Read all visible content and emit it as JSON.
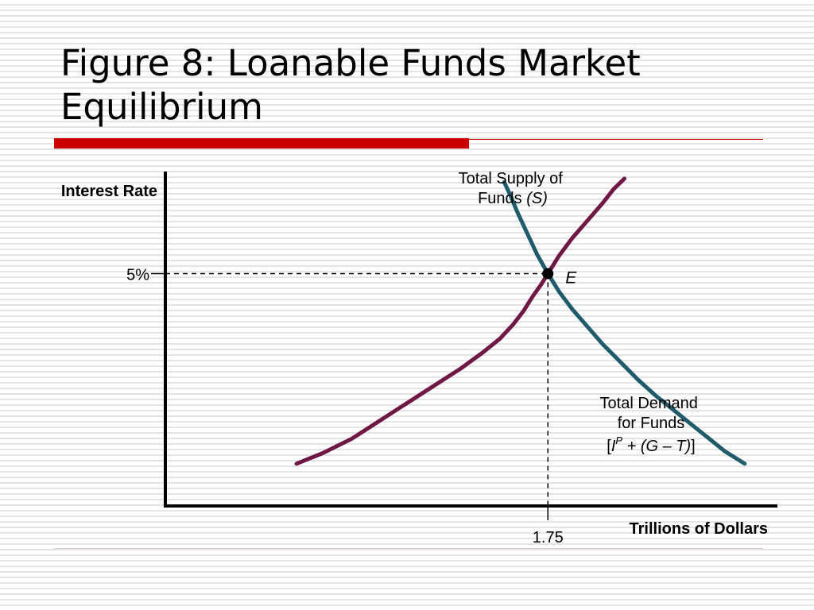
{
  "slide": {
    "title_line1": "Figure 8:  Loanable Funds Market",
    "title_line2": "Equilibrium",
    "accent_color": "#cc0000",
    "line_color": "#cc0000"
  },
  "chart_data": {
    "type": "line",
    "title": "Figure 8:  Loanable Funds Market Equilibrium",
    "ylabel": "Interest Rate",
    "xlabel": "Trillions of Dollars",
    "xlim": [
      0,
      2.8
    ],
    "ylim": [
      0,
      9.5
    ],
    "grid": false,
    "series": [
      {
        "key": "supply",
        "label_line1": "Total Supply of",
        "label_line2_text": "Funds ",
        "label_line2_italic": "(S)",
        "color": "#701845",
        "x": [
          0.6,
          0.72,
          0.85,
          0.95,
          1.05,
          1.15,
          1.25,
          1.35,
          1.45,
          1.53,
          1.59,
          1.64,
          1.68,
          1.72,
          1.75,
          1.8,
          1.86,
          1.93,
          2.0,
          2.05,
          2.1
        ],
        "y": [
          1.2,
          1.5,
          1.9,
          2.3,
          2.7,
          3.1,
          3.5,
          3.9,
          4.35,
          4.75,
          5.15,
          5.55,
          5.95,
          6.3,
          6.6,
          7.1,
          7.6,
          8.1,
          8.6,
          9.0,
          9.3
        ]
      },
      {
        "key": "demand",
        "label_line1": "Total Demand",
        "label_line2": "for Funds",
        "label_line3_open": "[",
        "label_line3_I": "I",
        "label_line3_sup": "P",
        "label_line3_rest": " + (G – T)",
        "label_line3_close": "]",
        "color": "#1f5b6b",
        "x": [
          1.55,
          1.58,
          1.61,
          1.64,
          1.67,
          1.7,
          1.75,
          1.8,
          1.86,
          1.93,
          2.0,
          2.08,
          2.16,
          2.24,
          2.32,
          2.4,
          2.48,
          2.56,
          2.65
        ],
        "y": [
          9.2,
          8.8,
          8.35,
          7.95,
          7.55,
          7.15,
          6.6,
          6.1,
          5.6,
          5.1,
          4.6,
          4.1,
          3.6,
          3.15,
          2.75,
          2.35,
          1.95,
          1.55,
          1.2
        ]
      }
    ],
    "equilibrium": {
      "label": "E",
      "x": 1.75,
      "y": 6.6,
      "x_tick_label": "1.75",
      "y_tick_label": "5%"
    }
  }
}
